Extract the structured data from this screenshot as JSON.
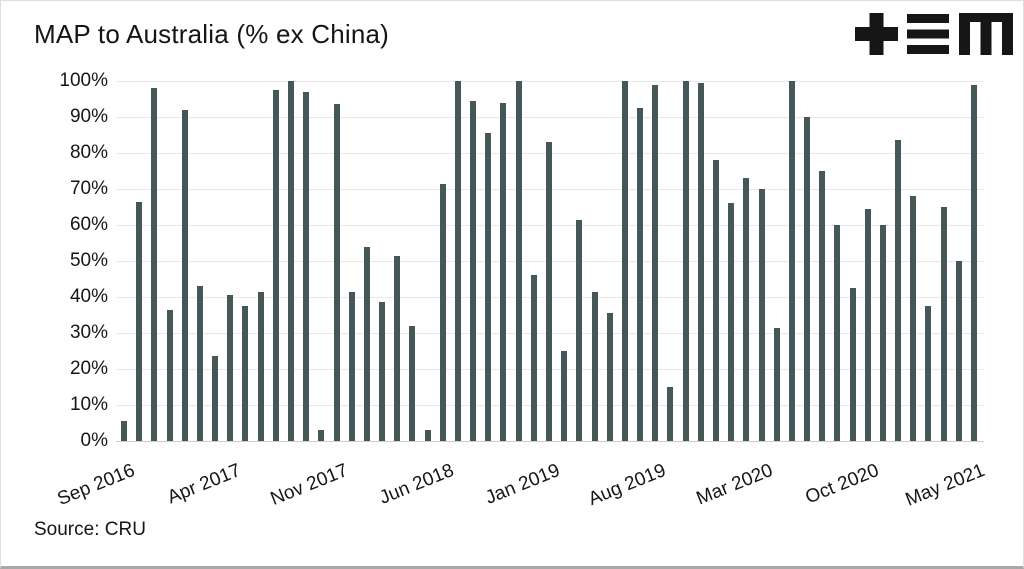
{
  "chart_data": {
    "type": "bar",
    "title": "MAP to Australia (% ex China)",
    "source": "Source: CRU",
    "xlabel": "",
    "ylabel": "",
    "ylim": [
      0,
      100
    ],
    "grid": true,
    "legend": "none",
    "bar_color": "#455857",
    "y_ticks": [
      "0%",
      "10%",
      "20%",
      "30%",
      "40%",
      "50%",
      "60%",
      "70%",
      "80%",
      "90%",
      "100%"
    ],
    "x_tick_labels": [
      "Sep 2016",
      "Apr 2017",
      "Nov 2017",
      "Jun 2018",
      "Jan 2019",
      "Aug 2019",
      "Mar 2020",
      "Oct 2020",
      "May 2021"
    ],
    "x_tick_indices": [
      0,
      7,
      14,
      21,
      28,
      35,
      42,
      49,
      56
    ],
    "categories": [
      "Sep 2016",
      "Oct 2016",
      "Nov 2016",
      "Dec 2016",
      "Jan 2017",
      "Feb 2017",
      "Mar 2017",
      "Apr 2017",
      "May 2017",
      "Jun 2017",
      "Jul 2017",
      "Aug 2017",
      "Sep 2017",
      "Oct 2017",
      "Nov 2017",
      "Dec 2017",
      "Jan 2018",
      "Feb 2018",
      "Mar 2018",
      "Apr 2018",
      "May 2018",
      "Jun 2018",
      "Jul 2018",
      "Aug 2018",
      "Sep 2018",
      "Oct 2018",
      "Nov 2018",
      "Dec 2018",
      "Jan 2019",
      "Feb 2019",
      "Mar 2019",
      "Apr 2019",
      "May 2019",
      "Jun 2019",
      "Jul 2019",
      "Aug 2019",
      "Sep 2019",
      "Oct 2019",
      "Nov 2019",
      "Dec 2019",
      "Jan 2020",
      "Feb 2020",
      "Mar 2020",
      "Apr 2020",
      "May 2020",
      "Jun 2020",
      "Jul 2020",
      "Aug 2020",
      "Sep 2020",
      "Oct 2020",
      "Nov 2020",
      "Dec 2020",
      "Jan 2021",
      "Feb 2021",
      "Mar 2021",
      "Apr 2021",
      "May 2021"
    ],
    "values": [
      5.5,
      66.5,
      98,
      36.5,
      92,
      43,
      23.5,
      40.5,
      37.5,
      41.5,
      97.5,
      100,
      97,
      3,
      93.5,
      41.5,
      54,
      38.5,
      51.5,
      32,
      3,
      71.5,
      100,
      94.5,
      85.5,
      94,
      100,
      46,
      83,
      25,
      61.5,
      41.5,
      35.5,
      100,
      92.5,
      99,
      15,
      100,
      99.5,
      78,
      66,
      73,
      70,
      31.5,
      100,
      90,
      75,
      60,
      42.5,
      64.5,
      60,
      83.5,
      68,
      37.5,
      65,
      50,
      99
    ]
  },
  "logo": {
    "name": "tem-logo",
    "color": "#161616"
  }
}
